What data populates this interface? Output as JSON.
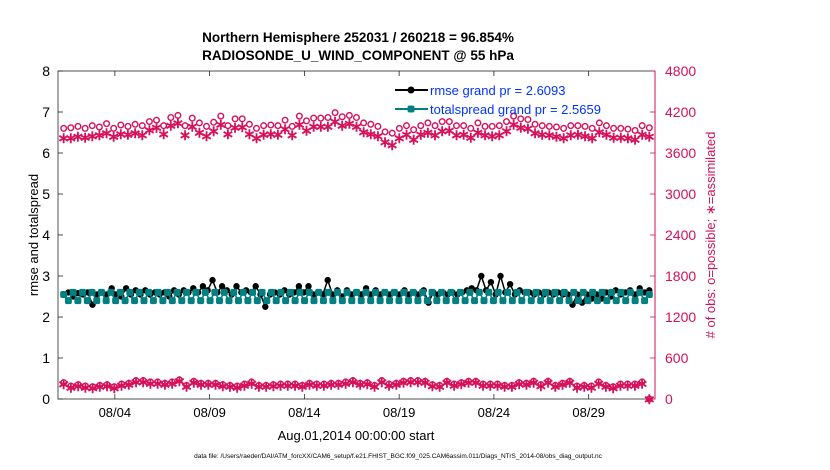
{
  "chart_data": {
    "type": "line",
    "title_line1": "Northern Hemisphere 252031 / 260218 = 96.854%",
    "title_line2": "RADIOSONDE_U_WIND_COMPONENT @ 55 hPa",
    "xlabel": "Aug.01,2014 00:00:00 start",
    "ylabel_left": "rmse and totalspread",
    "ylabel_right": "# of obs: o=possible; ∗=assimilated",
    "footnote": "data file: /Users/raeder/DAI/ATM_forcXX/CAM6_setup/f.e21.FHIST_BGC.f09_025.CAM6assim.011/Diags_NTrS_2014-08/obs_diag_output.nc",
    "xlim": [
      0,
      31.5
    ],
    "ylim_left": [
      0,
      8
    ],
    "ylim_right": [
      0,
      4800
    ],
    "x_tick_labels": [
      "08/04",
      "08/09",
      "08/14",
      "08/19",
      "08/24",
      "08/29"
    ],
    "x_tick_values": [
      3,
      8,
      13,
      18,
      23,
      28
    ],
    "y_left_ticks": [
      "0",
      "1",
      "2",
      "3",
      "4",
      "5",
      "6",
      "7",
      "8"
    ],
    "y_right_ticks": [
      "0",
      "600",
      "1200",
      "1800",
      "2400",
      "3000",
      "3600",
      "4200",
      "4800"
    ],
    "colors": {
      "rmse": "#000000",
      "spread": "#008080",
      "obs": "#d6105a",
      "legend_text": "#0033ff"
    },
    "series": [
      {
        "name": "rmse grand pr = 2.6093",
        "axis": "left",
        "values": [
          2.55,
          2.6,
          2.5,
          2.58,
          2.55,
          2.6,
          2.3,
          2.55,
          2.6,
          2.55,
          2.7,
          2.55,
          2.5,
          2.7,
          2.55,
          2.65,
          2.55,
          2.65,
          2.55,
          2.6,
          2.55,
          2.6,
          2.5,
          2.65,
          2.55,
          2.65,
          2.6,
          2.7,
          2.6,
          2.75,
          2.65,
          2.9,
          2.6,
          2.75,
          2.65,
          2.55,
          2.75,
          2.6,
          2.65,
          2.6,
          2.75,
          2.55,
          2.25,
          2.55,
          2.6,
          2.55,
          2.65,
          2.55,
          2.6,
          2.75,
          2.6,
          2.75,
          2.55,
          2.6,
          2.55,
          2.9,
          2.55,
          2.65,
          2.5,
          2.65,
          2.55,
          2.6,
          2.55,
          2.7,
          2.55,
          2.65,
          2.55,
          2.6,
          2.55,
          2.6,
          2.55,
          2.65,
          2.55,
          2.6,
          2.55,
          2.65,
          2.35,
          2.6,
          2.55,
          2.6,
          2.55,
          2.6,
          2.55,
          2.6,
          2.65,
          2.7,
          2.65,
          3.0,
          2.65,
          2.85,
          2.55,
          3.0,
          2.6,
          2.8,
          2.55,
          2.65,
          2.6,
          2.6,
          2.55,
          2.6,
          2.55,
          2.6,
          2.55,
          2.6,
          2.55,
          2.55,
          2.3,
          2.55,
          2.35,
          2.55,
          2.45,
          2.55,
          2.45,
          2.6,
          2.5,
          2.65,
          2.55,
          2.6,
          2.65,
          2.55,
          2.7,
          2.6,
          2.65
        ]
      },
      {
        "name": "totalspread grand pr = 2.5659",
        "axis": "left",
        "values": [
          2.55,
          2.4,
          2.6,
          2.4,
          2.6,
          2.4,
          2.6,
          2.4,
          2.6,
          2.4,
          2.6,
          2.4,
          2.6,
          2.4,
          2.6,
          2.4,
          2.6,
          2.4,
          2.6,
          2.4,
          2.6,
          2.4,
          2.6,
          2.4,
          2.6,
          2.4,
          2.6,
          2.4,
          2.6,
          2.4,
          2.6,
          2.4,
          2.6,
          2.4,
          2.6,
          2.4,
          2.6,
          2.4,
          2.6,
          2.4,
          2.6,
          2.4,
          2.6,
          2.4,
          2.6,
          2.4,
          2.6,
          2.4,
          2.6,
          2.4,
          2.6,
          2.4,
          2.6,
          2.4,
          2.6,
          2.4,
          2.6,
          2.4,
          2.6,
          2.4,
          2.6,
          2.4,
          2.6,
          2.4,
          2.6,
          2.4,
          2.6,
          2.4,
          2.6,
          2.4,
          2.6,
          2.4,
          2.6,
          2.4,
          2.6,
          2.4,
          2.6,
          2.4,
          2.6,
          2.4,
          2.6,
          2.4,
          2.6,
          2.4,
          2.6,
          2.4,
          2.6,
          2.4,
          2.6,
          2.4,
          2.6,
          2.4,
          2.6,
          2.4,
          2.6,
          2.4,
          2.6,
          2.4,
          2.6,
          2.4,
          2.6,
          2.4,
          2.6,
          2.4,
          2.6,
          2.4,
          2.6,
          2.4,
          2.6,
          2.4,
          2.6,
          2.4,
          2.6,
          2.4,
          2.6,
          2.4,
          2.6,
          2.4,
          2.6,
          2.4,
          2.6,
          2.4,
          2.6,
          2.4,
          2.55
        ]
      },
      {
        "name": "obs possible",
        "axis": "right",
        "marker": "o",
        "values": [
          3960,
          3970,
          3990,
          3960,
          4000,
          3980,
          4030,
          3960,
          4010,
          3990,
          4020,
          4000,
          4060,
          4080,
          4000,
          4120,
          4150,
          4000,
          4110,
          4040,
          3990,
          4050,
          4140,
          4000,
          4100,
          4100,
          4020,
          3960,
          4000,
          4010,
          4000,
          4080,
          3990,
          4140,
          4070,
          4110,
          4110,
          4120,
          4190,
          4130,
          4150,
          4120,
          4040,
          4020,
          3990,
          3910,
          3890,
          3960,
          4000,
          3940,
          4000,
          4040,
          4000,
          4060,
          4060,
          4000,
          4000,
          3960,
          4040,
          3990,
          3990,
          4000,
          4060,
          4140,
          4100,
          4090,
          4020,
          4000,
          3990,
          3980,
          3960,
          4000,
          4000,
          3990,
          3960,
          4040,
          4000,
          3960,
          3960,
          3950,
          3930,
          4000,
          3970
        ]
      },
      {
        "name": "obs assimilated",
        "axis": "right",
        "marker": "*",
        "values": [
          3820,
          3820,
          3840,
          3830,
          3850,
          3860,
          3890,
          3840,
          3880,
          3870,
          3890,
          3860,
          3940,
          3970,
          3880,
          4000,
          4040,
          3860,
          3990,
          3900,
          3850,
          3920,
          4020,
          3880,
          3970,
          3980,
          3880,
          3820,
          3870,
          3880,
          3870,
          3950,
          3860,
          4020,
          3930,
          3990,
          3990,
          3990,
          4060,
          4000,
          4030,
          3990,
          3910,
          3880,
          3850,
          3760,
          3720,
          3820,
          3870,
          3800,
          3870,
          3900,
          3860,
          3920,
          3930,
          3860,
          3870,
          3830,
          3900,
          3860,
          3850,
          3860,
          3920,
          4020,
          3970,
          3960,
          3890,
          3870,
          3860,
          3840,
          3820,
          3860,
          3870,
          3850,
          3820,
          3910,
          3870,
          3830,
          3830,
          3820,
          3800,
          3870,
          3840
        ]
      },
      {
        "name": "obs low possible",
        "axis": "right",
        "marker": "o",
        "values": [
          240,
          190,
          210,
          190,
          180,
          200,
          210,
          180,
          220,
          230,
          270,
          270,
          250,
          250,
          230,
          250,
          280,
          200,
          260,
          230,
          230,
          230,
          210,
          200,
          190,
          220,
          250,
          200,
          200,
          210,
          220,
          220,
          220,
          200,
          230,
          220,
          220,
          230,
          230,
          250,
          270,
          230,
          240,
          200,
          270,
          220,
          230,
          260,
          270,
          270,
          260,
          210,
          200,
          260,
          220,
          240,
          260,
          260,
          220,
          220,
          220,
          200,
          200,
          240,
          230,
          260,
          210,
          260,
          200,
          230,
          260,
          190,
          200,
          190,
          250,
          200,
          180,
          220,
          220,
          220,
          250,
          0
        ]
      },
      {
        "name": "obs low assimilated",
        "axis": "right",
        "marker": "*",
        "values": [
          220,
          170,
          190,
          170,
          160,
          180,
          190,
          160,
          200,
          210,
          250,
          250,
          230,
          230,
          210,
          230,
          260,
          180,
          240,
          210,
          210,
          210,
          190,
          180,
          170,
          200,
          230,
          180,
          180,
          190,
          200,
          200,
          200,
          180,
          210,
          200,
          200,
          210,
          210,
          230,
          250,
          210,
          220,
          180,
          250,
          200,
          210,
          240,
          250,
          250,
          240,
          190,
          180,
          240,
          200,
          220,
          240,
          240,
          200,
          200,
          200,
          180,
          180,
          220,
          210,
          240,
          190,
          240,
          180,
          210,
          240,
          170,
          180,
          170,
          230,
          180,
          160,
          200,
          200,
          200,
          230,
          0
        ]
      }
    ]
  }
}
